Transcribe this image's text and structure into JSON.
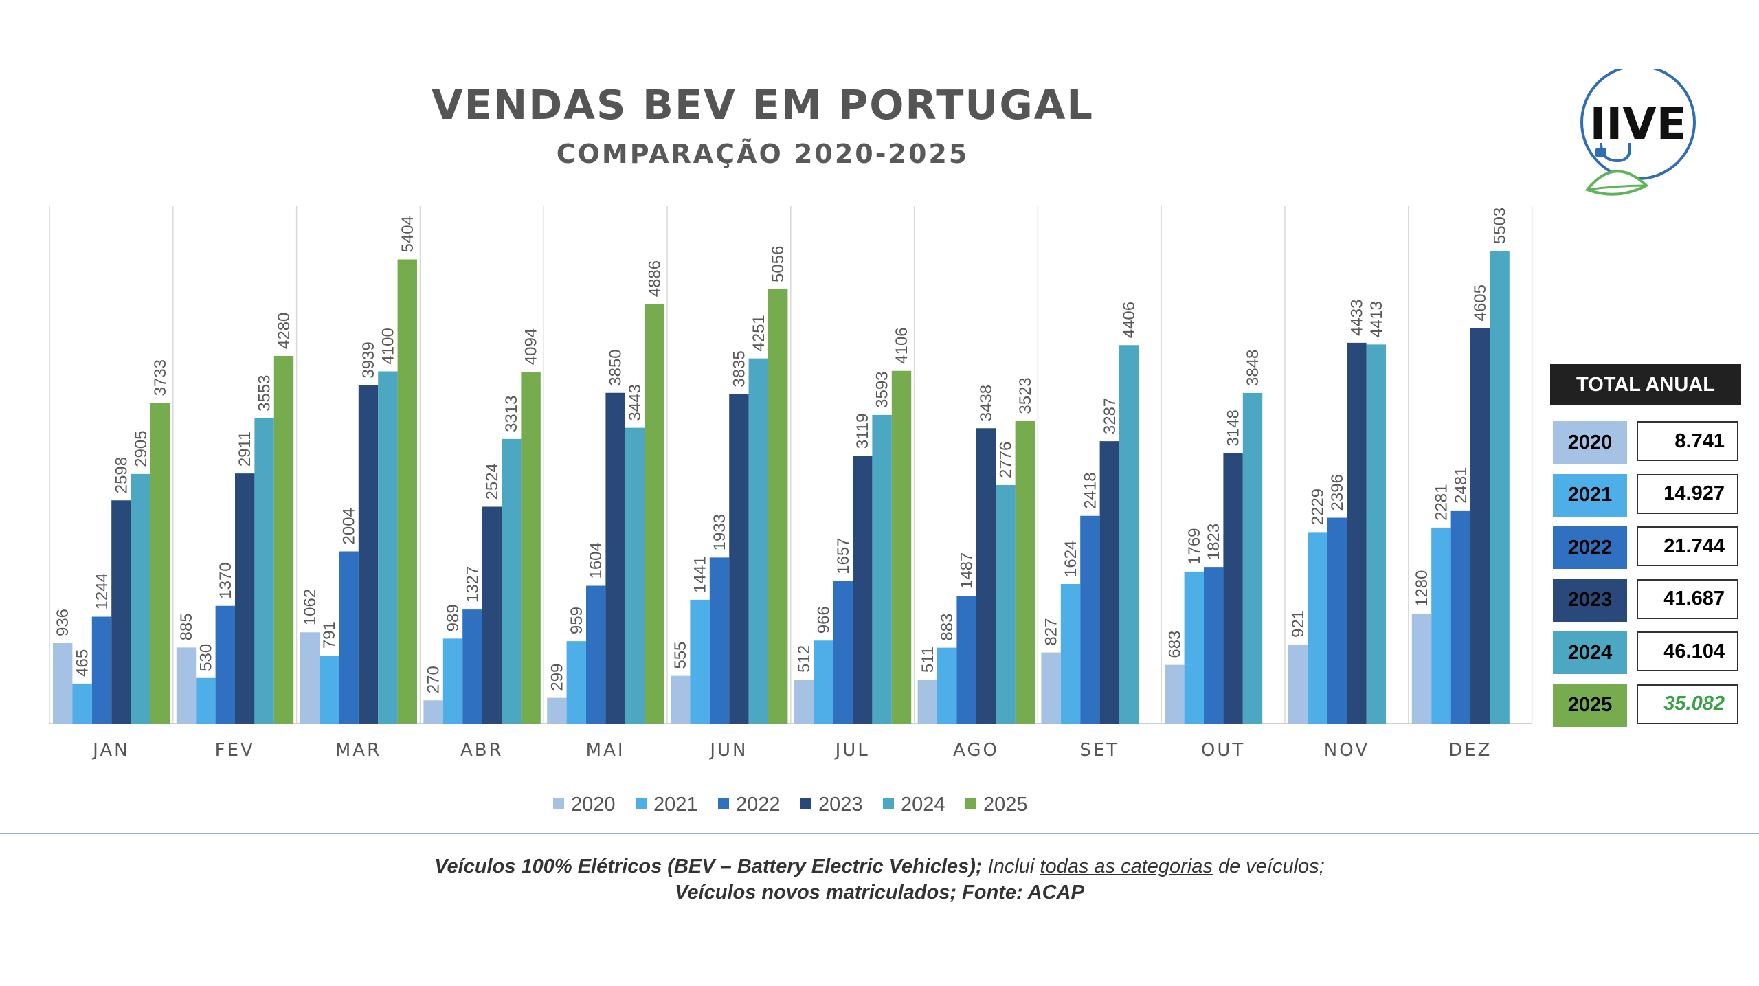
{
  "colors": {
    "2020": "#a5c2e4",
    "2021": "#4eaee8",
    "2022": "#2f70c0",
    "2023": "#29497a",
    "2024": "#4ba7c2",
    "2025": "#76ab4e",
    "partial_text": "#3aa14a"
  },
  "logo": {
    "text": "IIVE",
    "icons": [
      "plug-icon",
      "leaf-icon"
    ]
  },
  "totals": {
    "header": "TOTAL ANUAL",
    "rows": [
      {
        "year": "2020",
        "value": "8.741"
      },
      {
        "year": "2021",
        "value": "14.927"
      },
      {
        "year": "2022",
        "value": "21.744"
      },
      {
        "year": "2023",
        "value": "41.687"
      },
      {
        "year": "2024",
        "value": "46.104"
      },
      {
        "year": "2025",
        "value": "35.082"
      }
    ]
  },
  "footnote": {
    "line1_bold": "Veículos 100% Elétricos (BEV – Battery Electric Vehicles);",
    "line1_a": " Inclui ",
    "line1_u": "todas as categorias",
    "line1_b": " de veículos;",
    "line2_bold": "Veículos novos matriculados; Fonte: ACAP"
  },
  "chart_data": {
    "type": "bar",
    "title": "VENDAS BEV EM PORTUGAL",
    "subtitle": "COMPARAÇÃO 2020-2025",
    "categories": [
      "JAN",
      "FEV",
      "MAR",
      "ABR",
      "MAI",
      "JUN",
      "JUL",
      "AGO",
      "SET",
      "OUT",
      "NOV",
      "DEZ"
    ],
    "series": [
      {
        "name": "2020",
        "values": [
          936,
          885,
          1062,
          270,
          299,
          555,
          512,
          511,
          827,
          683,
          921,
          1280
        ]
      },
      {
        "name": "2021",
        "values": [
          465,
          530,
          791,
          989,
          959,
          1441,
          966,
          883,
          1624,
          1769,
          2229,
          2281
        ]
      },
      {
        "name": "2022",
        "values": [
          1244,
          1370,
          2004,
          1327,
          1604,
          1933,
          1657,
          1487,
          2418,
          1823,
          2396,
          2481
        ]
      },
      {
        "name": "2023",
        "values": [
          2598,
          2911,
          3939,
          2524,
          3850,
          3835,
          3119,
          3438,
          3287,
          3148,
          4433,
          4605
        ]
      },
      {
        "name": "2024",
        "values": [
          2905,
          3553,
          4100,
          3313,
          3443,
          4251,
          3593,
          2776,
          4406,
          3848,
          4413,
          5503
        ]
      },
      {
        "name": "2025",
        "values": [
          3733,
          4280,
          5404,
          4094,
          4886,
          5056,
          4106,
          3523,
          null,
          null,
          null,
          null
        ]
      }
    ],
    "ylim": [
      0,
      6000
    ],
    "grid": "vertical separators",
    "legend": "bottom-center",
    "data_labels": true
  }
}
